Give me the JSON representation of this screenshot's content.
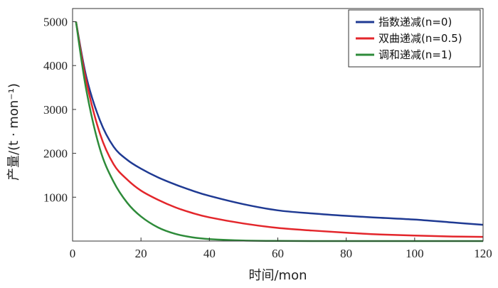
{
  "chart_data": {
    "type": "line",
    "title": "",
    "xlabel": "时间/mon",
    "ylabel": "产量/(t · mon⁻¹)",
    "xlim": [
      0,
      120
    ],
    "ylim": [
      0,
      5300
    ],
    "x_ticks": [
      0,
      20,
      40,
      60,
      80,
      100,
      120
    ],
    "y_ticks": [
      1000,
      2000,
      3000,
      4000,
      5000
    ],
    "grid": false,
    "legend_position": "top-right",
    "x": [
      1,
      4,
      8,
      12,
      16,
      20,
      25,
      30,
      35,
      40,
      50,
      60,
      70,
      80,
      90,
      100,
      110,
      120
    ],
    "series": [
      {
        "name": "指数递减(n=0)",
        "color": "#1f3a93",
        "values": [
          5000,
          3750,
          2750,
          2150,
          1850,
          1650,
          1450,
          1290,
          1150,
          1030,
          840,
          700,
          630,
          575,
          530,
          490,
          430,
          370
        ]
      },
      {
        "name": "双曲递减(n=0.5)",
        "color": "#e3262b",
        "values": [
          5000,
          3650,
          2450,
          1750,
          1400,
          1150,
          940,
          770,
          640,
          540,
          400,
          300,
          240,
          190,
          150,
          125,
          105,
          95
        ]
      },
      {
        "name": "调和递减(n=1)",
        "color": "#2e8b3a",
        "values": [
          5000,
          3450,
          2100,
          1350,
          870,
          560,
          310,
          165,
          85,
          45,
          12,
          3,
          0,
          0,
          0,
          0,
          0,
          0
        ]
      }
    ]
  }
}
